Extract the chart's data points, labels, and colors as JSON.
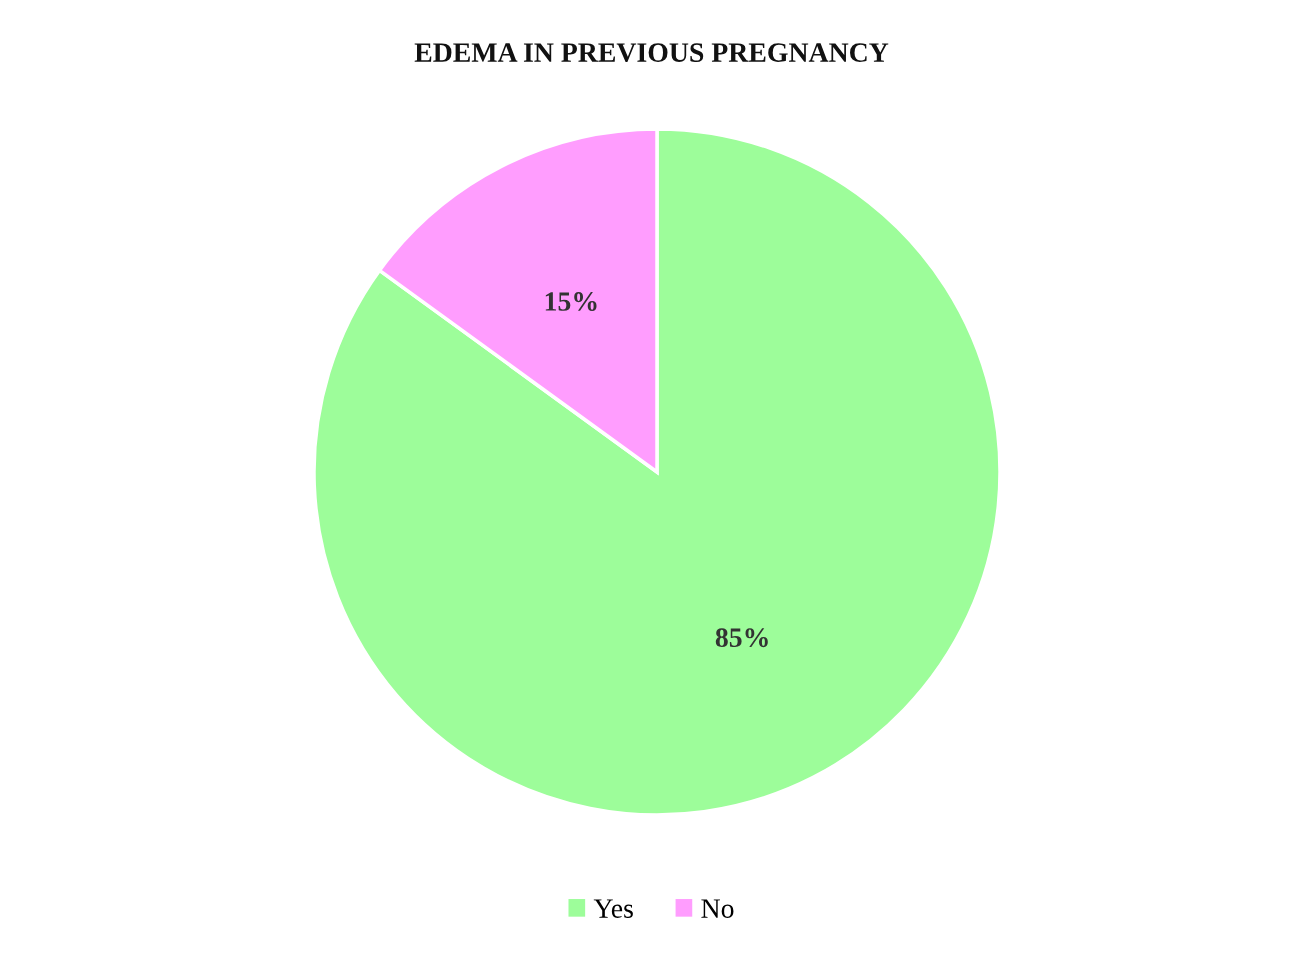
{
  "chart_data": {
    "type": "pie",
    "title": "EDEMA IN PREVIOUS PREGNANCY",
    "categories": [
      "Yes",
      "No"
    ],
    "values": [
      85,
      15
    ],
    "colors": [
      "#9dfd9a",
      "#ff9dfe"
    ],
    "value_labels": [
      "85%",
      "15%"
    ],
    "legend": "bottom"
  }
}
